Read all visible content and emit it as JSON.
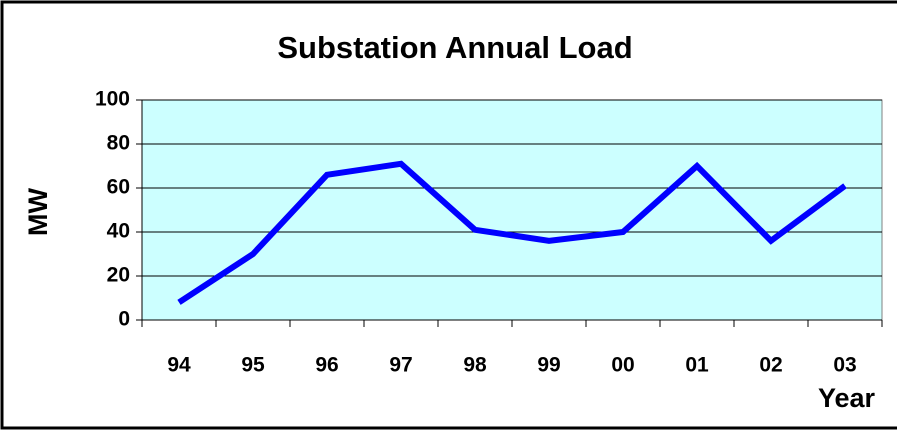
{
  "chart_data": {
    "type": "line",
    "title": "Substation Annual Load",
    "x_label": "Year",
    "y_label": "MW",
    "categories": [
      "94",
      "95",
      "96",
      "97",
      "98",
      "99",
      "00",
      "01",
      "02",
      "03"
    ],
    "series": [
      {
        "name": "Load",
        "color": "#0000ff",
        "values": [
          8,
          30,
          66,
          71,
          41,
          36,
          40,
          70,
          36,
          61
        ]
      }
    ],
    "ylim": [
      0,
      100
    ],
    "yticks": [
      0,
      20,
      40,
      60,
      80,
      100
    ],
    "grid": true,
    "plot_background": "#ccffff"
  }
}
